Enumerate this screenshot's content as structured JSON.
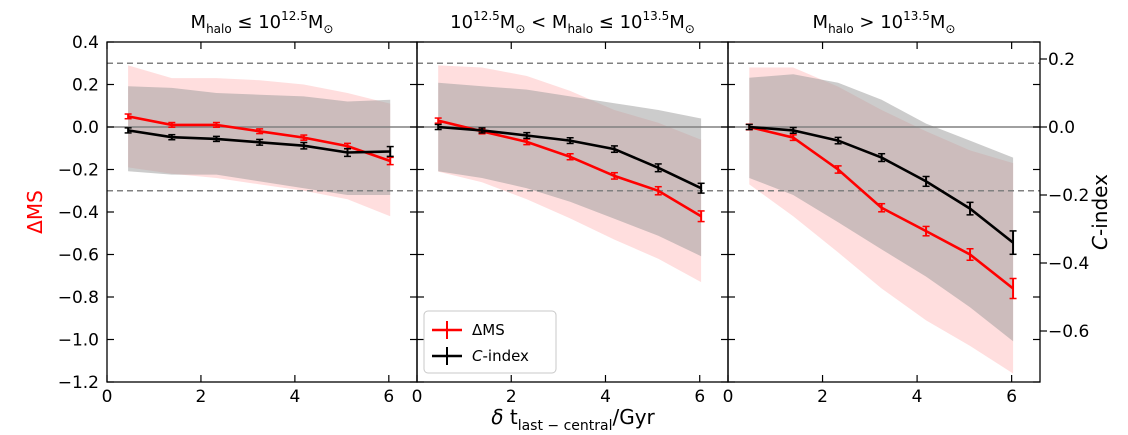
{
  "chart_data": {
    "type": "line",
    "xlabel": {
      "delta": "δ",
      "t": "t",
      "sub": "last − central",
      "unit": "/Gyr"
    },
    "ylabel_left": "ΔMS",
    "ylabel_right": {
      "c": "C",
      "rest": "-index"
    },
    "colors": {
      "dms": "#ff0000",
      "dms_band": "#ffc8c8",
      "cidx": "#000000",
      "cidx_band": "#9a9a9a"
    },
    "xlim": [
      0,
      6.6
    ],
    "ylim_left": [
      -1.2,
      0.4
    ],
    "ylim_right": [
      -0.75,
      0.25
    ],
    "x_ticks": [
      0,
      2,
      4,
      6
    ],
    "left_ticks": [
      "0.4",
      "0.2",
      "0.0",
      "−0.2",
      "−0.4",
      "−0.6",
      "−0.8",
      "−1.0",
      "−1.2"
    ],
    "left_tick_values": [
      0.4,
      0.2,
      0.0,
      -0.2,
      -0.4,
      -0.6,
      -0.8,
      -1.0,
      -1.2
    ],
    "right_ticks": [
      "0.2",
      "0.0",
      "−0.2",
      "−0.4",
      "−0.6"
    ],
    "right_tick_values": [
      0.2,
      0.0,
      -0.2,
      -0.4,
      -0.6
    ],
    "hlines_left": {
      "dashed": [
        0.3,
        -0.3
      ],
      "solid": [
        0.0
      ]
    },
    "legend": {
      "location": "bottom-left of middle panel",
      "entries": [
        "ΔMS",
        "C-index"
      ]
    },
    "panels": [
      {
        "title": {
          "pre": "M",
          "sub1": "halo",
          "mid": " ≤ 10",
          "sup": "12.5",
          "post": "M",
          "sub2": "⊙"
        },
        "x": [
          0.45,
          1.38,
          2.33,
          3.25,
          4.19,
          5.12,
          6.03
        ],
        "dms": [
          0.05,
          0.01,
          0.01,
          -0.02,
          -0.05,
          -0.09,
          -0.16
        ],
        "dms_lo": [
          -0.19,
          -0.22,
          -0.24,
          -0.27,
          -0.3,
          -0.34,
          -0.42
        ],
        "dms_hi": [
          0.29,
          0.23,
          0.23,
          0.22,
          0.2,
          0.16,
          0.11
        ],
        "dms_err": [
          0.004,
          0.004,
          0.004,
          0.004,
          0.005,
          0.006,
          0.01
        ],
        "cidx": [
          -0.01,
          -0.03,
          -0.035,
          -0.045,
          -0.055,
          -0.075,
          -0.072
        ],
        "cidx_lo": [
          -0.13,
          -0.14,
          -0.14,
          -0.16,
          -0.18,
          -0.2,
          -0.2
        ],
        "cidx_hi": [
          0.12,
          0.115,
          0.1,
          0.095,
          0.09,
          0.075,
          0.08
        ],
        "cidx_err": [
          0.003,
          0.003,
          0.003,
          0.004,
          0.005,
          0.007,
          0.01
        ]
      },
      {
        "title": {
          "pre": "10",
          "sup1": "12.5",
          "mid1": "M",
          "sub1": "⊙",
          "mid2": " < M",
          "sub2": "halo",
          "mid3": " ≤ 10",
          "sup2": "13.5",
          "post": "M",
          "sub3": "⊙"
        },
        "x": [
          0.45,
          1.38,
          2.33,
          3.25,
          4.19,
          5.12,
          6.03
        ],
        "dms": [
          0.03,
          -0.02,
          -0.07,
          -0.14,
          -0.23,
          -0.3,
          -0.42
        ],
        "dms_lo": [
          -0.21,
          -0.26,
          -0.34,
          -0.43,
          -0.53,
          -0.62,
          -0.73
        ],
        "dms_hi": [
          0.29,
          0.28,
          0.24,
          0.17,
          0.08,
          0.02,
          -0.06
        ],
        "dms_err": [
          0.005,
          0.005,
          0.006,
          0.007,
          0.008,
          0.012,
          0.018
        ],
        "cidx": [
          0.0,
          -0.01,
          -0.025,
          -0.04,
          -0.065,
          -0.12,
          -0.18
        ],
        "cidx_lo": [
          -0.13,
          -0.15,
          -0.18,
          -0.22,
          -0.27,
          -0.32,
          -0.38
        ],
        "cidx_hi": [
          0.13,
          0.12,
          0.11,
          0.09,
          0.07,
          0.05,
          0.025
        ],
        "cidx_err": [
          0.003,
          0.003,
          0.004,
          0.004,
          0.005,
          0.007,
          0.01
        ]
      },
      {
        "title": {
          "pre": "M",
          "sub1": "halo",
          "mid": " > 10",
          "sup": "13.5",
          "post": "M",
          "sub2": "⊙"
        },
        "x": [
          0.45,
          1.38,
          2.33,
          3.25,
          4.19,
          5.12,
          6.03
        ],
        "dms": [
          0.0,
          -0.05,
          -0.2,
          -0.38,
          -0.49,
          -0.6,
          -0.76
        ],
        "dms_lo": [
          -0.27,
          -0.42,
          -0.59,
          -0.76,
          -0.91,
          -1.03,
          -1.16
        ],
        "dms_hi": [
          0.28,
          0.28,
          0.19,
          0.08,
          -0.02,
          -0.11,
          -0.17
        ],
        "dms_err": [
          0.006,
          0.006,
          0.01,
          0.012,
          0.015,
          0.02,
          0.04
        ],
        "cidx": [
          0.0,
          -0.01,
          -0.04,
          -0.09,
          -0.16,
          -0.24,
          -0.34
        ],
        "cidx_lo": [
          -0.15,
          -0.2,
          -0.28,
          -0.36,
          -0.44,
          -0.53,
          -0.63
        ],
        "cidx_hi": [
          0.145,
          0.155,
          0.13,
          0.08,
          0.01,
          -0.04,
          -0.09
        ],
        "cidx_err": [
          0.003,
          0.004,
          0.005,
          0.007,
          0.01,
          0.014,
          0.03
        ]
      }
    ]
  }
}
